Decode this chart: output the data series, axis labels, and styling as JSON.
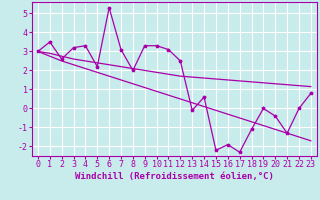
{
  "x": [
    0,
    1,
    2,
    3,
    4,
    5,
    6,
    7,
    8,
    9,
    10,
    11,
    12,
    13,
    14,
    15,
    16,
    17,
    18,
    19,
    20,
    21,
    22,
    23
  ],
  "y_line": [
    3.0,
    3.5,
    2.6,
    3.2,
    3.3,
    2.2,
    5.3,
    3.1,
    2.0,
    3.3,
    3.3,
    3.1,
    2.5,
    -0.1,
    0.6,
    -2.2,
    -1.9,
    -2.3,
    -1.1,
    0.0,
    -0.4,
    -1.3,
    0.0,
    0.8
  ],
  "y_trend1": [
    3.0,
    2.9,
    2.75,
    2.6,
    2.5,
    2.4,
    2.3,
    2.2,
    2.1,
    2.0,
    1.9,
    1.8,
    1.7,
    1.65,
    1.6,
    1.55,
    1.5,
    1.45,
    1.4,
    1.35,
    1.3,
    1.25,
    1.2,
    1.15
  ],
  "y_trend2": [
    3.0,
    2.75,
    2.5,
    2.3,
    2.1,
    1.9,
    1.7,
    1.5,
    1.3,
    1.1,
    0.9,
    0.7,
    0.5,
    0.3,
    0.1,
    -0.1,
    -0.3,
    -0.5,
    -0.7,
    -0.9,
    -1.1,
    -1.3,
    -1.5,
    -1.7
  ],
  "background_color": "#c8ebeb",
  "grid_color": "#ffffff",
  "line_color": "#aa00aa",
  "xlim": [
    -0.5,
    23.5
  ],
  "ylim": [
    -2.5,
    5.6
  ],
  "yticks": [
    -2,
    -1,
    0,
    1,
    2,
    3,
    4,
    5
  ],
  "xlabel": "Windchill (Refroidissement éolien,°C)",
  "xlabel_fontsize": 6.5,
  "tick_fontsize": 6.0,
  "line_width": 0.9,
  "marker_size": 2.5
}
